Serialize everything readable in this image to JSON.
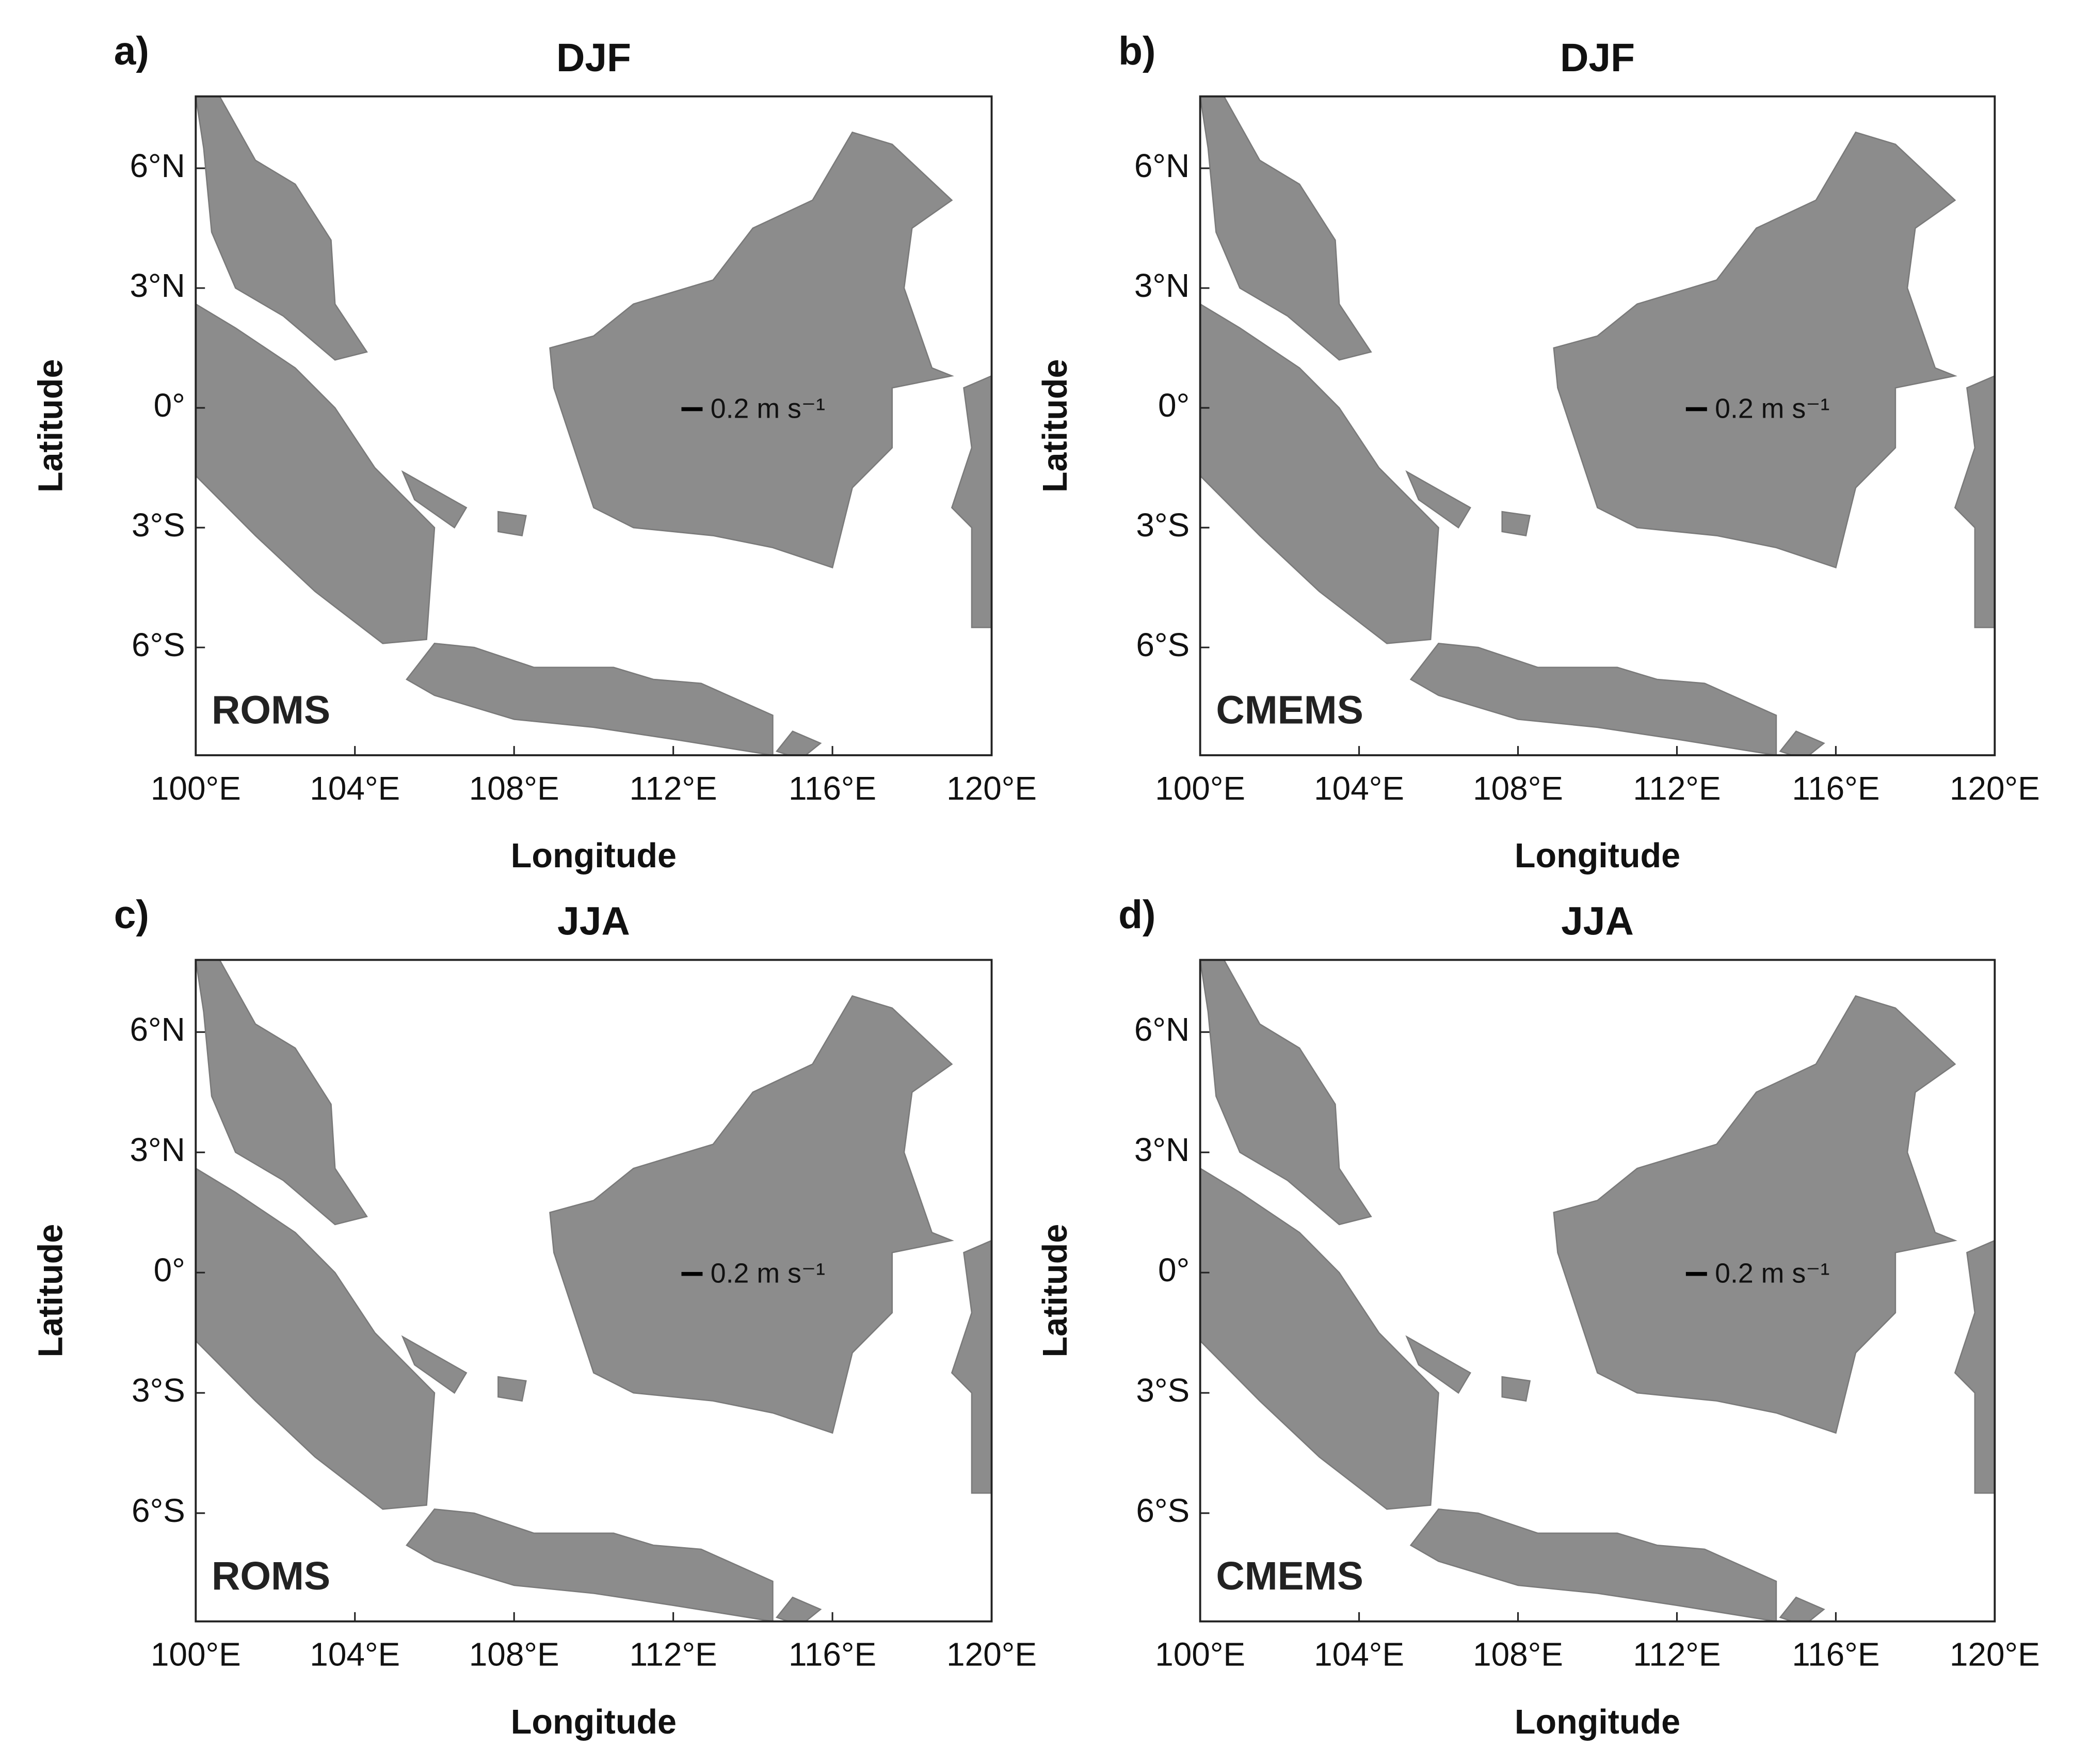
{
  "chart_data": [
    {
      "type": "quiver",
      "panel_label": "a)",
      "title": "DJF",
      "source": "ROMS",
      "xlabel": "Longitude",
      "ylabel": "Latitude",
      "xlim": [
        100,
        120
      ],
      "ylim": [
        -8.7,
        7.8
      ],
      "xticks": [
        {
          "value": 100,
          "label": "100°E"
        },
        {
          "value": 104,
          "label": "104°E"
        },
        {
          "value": 108,
          "label": "108°E"
        },
        {
          "value": 112,
          "label": "112°E"
        },
        {
          "value": 116,
          "label": "116°E"
        },
        {
          "value": 120,
          "label": "120°E"
        }
      ],
      "yticks": [
        {
          "value": 6,
          "label": "6°N"
        },
        {
          "value": 3,
          "label": "3°N"
        },
        {
          "value": 0,
          "label": "0°"
        },
        {
          "value": -3,
          "label": "3°S"
        },
        {
          "value": -6,
          "label": "6°S"
        }
      ],
      "scale_vector": {
        "value": 0.2,
        "label": "0.2 m s⁻¹"
      }
    },
    {
      "type": "quiver",
      "panel_label": "b)",
      "title": "DJF",
      "source": "CMEMS",
      "xlabel": "Longitude",
      "ylabel": "Latitude",
      "xlim": [
        100,
        120
      ],
      "ylim": [
        -8.7,
        7.8
      ],
      "xticks": [
        {
          "value": 100,
          "label": "100°E"
        },
        {
          "value": 104,
          "label": "104°E"
        },
        {
          "value": 108,
          "label": "108°E"
        },
        {
          "value": 112,
          "label": "112°E"
        },
        {
          "value": 116,
          "label": "116°E"
        },
        {
          "value": 120,
          "label": "120°E"
        }
      ],
      "yticks": [
        {
          "value": 6,
          "label": "6°N"
        },
        {
          "value": 3,
          "label": "3°N"
        },
        {
          "value": 0,
          "label": "0°"
        },
        {
          "value": -3,
          "label": "3°S"
        },
        {
          "value": -6,
          "label": "6°S"
        }
      ],
      "scale_vector": {
        "value": 0.2,
        "label": "0.2 m s⁻¹"
      }
    },
    {
      "type": "quiver",
      "panel_label": "c)",
      "title": "JJA",
      "source": "ROMS",
      "xlabel": "Longitude",
      "ylabel": "Latitude",
      "xlim": [
        100,
        120
      ],
      "ylim": [
        -8.7,
        7.8
      ],
      "xticks": [
        {
          "value": 100,
          "label": "100°E"
        },
        {
          "value": 104,
          "label": "104°E"
        },
        {
          "value": 108,
          "label": "108°E"
        },
        {
          "value": 112,
          "label": "112°E"
        },
        {
          "value": 116,
          "label": "116°E"
        },
        {
          "value": 120,
          "label": "120°E"
        }
      ],
      "yticks": [
        {
          "value": 6,
          "label": "6°N"
        },
        {
          "value": 3,
          "label": "3°N"
        },
        {
          "value": 0,
          "label": "0°"
        },
        {
          "value": -3,
          "label": "3°S"
        },
        {
          "value": -6,
          "label": "6°S"
        }
      ],
      "scale_vector": {
        "value": 0.2,
        "label": "0.2 m s⁻¹"
      }
    },
    {
      "type": "quiver",
      "panel_label": "d)",
      "title": "JJA",
      "source": "CMEMS",
      "xlabel": "Longitude",
      "ylabel": "Latitude",
      "xlim": [
        100,
        120
      ],
      "ylim": [
        -8.7,
        7.8
      ],
      "xticks": [
        {
          "value": 100,
          "label": "100°E"
        },
        {
          "value": 104,
          "label": "104°E"
        },
        {
          "value": 108,
          "label": "108°E"
        },
        {
          "value": 112,
          "label": "112°E"
        },
        {
          "value": 116,
          "label": "116°E"
        },
        {
          "value": 120,
          "label": "120°E"
        }
      ],
      "yticks": [
        {
          "value": 6,
          "label": "6°N"
        },
        {
          "value": 3,
          "label": "3°N"
        },
        {
          "value": 0,
          "label": "0°"
        },
        {
          "value": -3,
          "label": "3°S"
        },
        {
          "value": -6,
          "label": "6°S"
        }
      ],
      "scale_vector": {
        "value": 0.2,
        "label": "0.2 m s⁻¹"
      }
    }
  ]
}
